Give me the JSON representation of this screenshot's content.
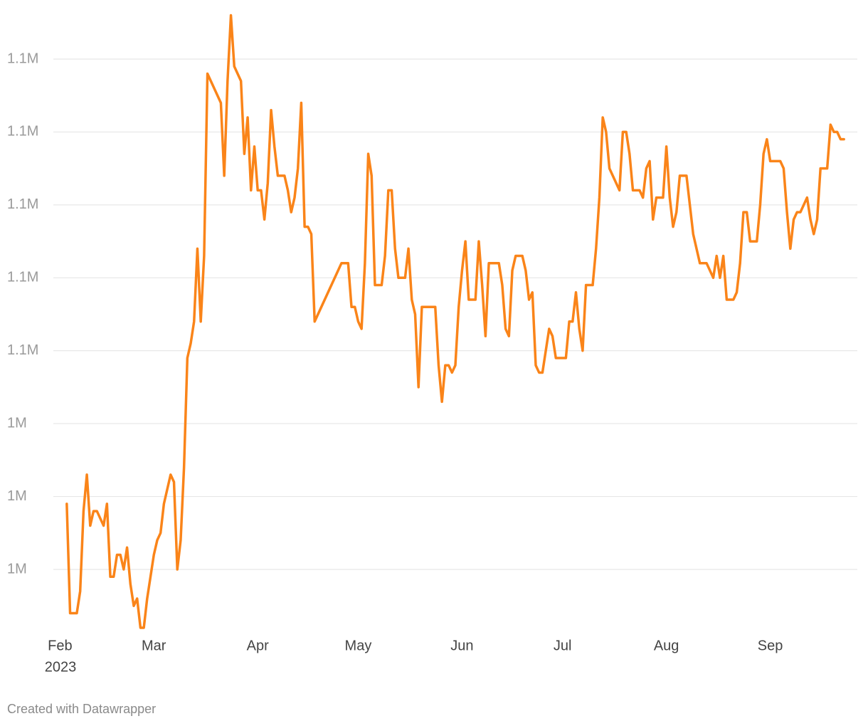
{
  "chart_data": {
    "type": "line",
    "x": [
      2,
      3,
      5,
      6,
      7,
      8,
      9,
      10,
      11,
      13,
      14,
      15,
      16,
      17,
      18,
      19,
      20,
      21,
      22,
      23,
      24,
      25,
      26,
      27,
      28,
      29,
      30,
      31,
      33,
      34,
      35,
      36,
      37,
      38,
      39,
      40,
      41,
      42,
      43,
      44,
      48,
      49,
      50,
      51,
      52,
      54,
      55,
      56,
      57,
      58,
      59,
      60,
      61,
      62,
      63,
      64,
      65,
      67,
      68,
      69,
      70,
      71,
      72,
      73,
      74,
      75,
      76,
      84,
      86,
      87,
      88,
      89,
      90,
      91,
      92,
      93,
      94,
      96,
      97,
      98,
      99,
      100,
      101,
      103,
      104,
      105,
      106,
      107,
      108,
      112,
      113,
      114,
      115,
      116,
      117,
      118,
      119,
      120,
      121,
      122,
      124,
      125,
      126,
      127,
      128,
      131,
      132,
      133,
      134,
      135,
      136,
      138,
      139,
      140,
      141,
      142,
      143,
      144,
      146,
      147,
      148,
      151,
      152,
      153,
      154,
      155,
      156,
      157,
      159,
      160,
      161,
      162,
      163,
      164,
      167,
      168,
      169,
      170,
      171,
      173,
      174,
      175,
      176,
      177,
      178,
      180,
      181,
      182,
      183,
      184,
      185,
      187,
      188,
      189,
      191,
      193,
      195,
      196,
      197,
      198,
      199,
      201,
      202,
      203,
      204,
      205,
      206,
      208,
      209,
      210,
      211,
      212,
      215,
      216,
      217,
      218,
      219,
      220,
      221,
      222,
      223,
      224,
      225,
      226,
      227,
      229,
      230,
      231,
      232,
      233,
      234
    ],
    "values": [
      1029000,
      1014000,
      1014000,
      1017000,
      1028000,
      1033000,
      1026000,
      1028000,
      1028000,
      1026000,
      1029000,
      1019000,
      1019000,
      1022000,
      1022000,
      1020000,
      1023000,
      1018000,
      1015000,
      1016000,
      1012000,
      1012000,
      1016000,
      1019000,
      1022000,
      1024000,
      1025000,
      1029000,
      1033000,
      1032000,
      1020000,
      1024000,
      1034000,
      1049000,
      1051000,
      1054000,
      1064000,
      1054000,
      1063000,
      1088000,
      1084000,
      1074000,
      1087000,
      1096000,
      1089000,
      1087000,
      1077000,
      1082000,
      1072000,
      1078000,
      1072000,
      1072000,
      1068000,
      1073000,
      1083000,
      1078000,
      1074000,
      1074000,
      1072000,
      1069000,
      1071000,
      1075000,
      1084000,
      1067000,
      1067000,
      1066000,
      1054000,
      1062000,
      1062000,
      1056000,
      1056000,
      1054000,
      1053000,
      1062000,
      1077000,
      1074000,
      1059000,
      1059000,
      1063000,
      1072000,
      1072000,
      1064000,
      1060000,
      1060000,
      1064000,
      1057000,
      1055000,
      1045000,
      1056000,
      1056000,
      1048000,
      1043000,
      1048000,
      1048000,
      1047000,
      1048000,
      1056000,
      1061000,
      1065000,
      1057000,
      1057000,
      1065000,
      1059000,
      1052000,
      1062000,
      1062000,
      1059000,
      1053000,
      1052000,
      1061000,
      1063000,
      1063000,
      1061000,
      1057000,
      1058000,
      1048000,
      1047000,
      1047000,
      1053000,
      1052000,
      1049000,
      1049000,
      1054000,
      1054000,
      1058000,
      1053000,
      1050000,
      1059000,
      1059000,
      1064000,
      1071000,
      1082000,
      1080000,
      1075000,
      1072000,
      1080000,
      1080000,
      1077000,
      1072000,
      1072000,
      1071000,
      1075000,
      1076000,
      1068000,
      1071000,
      1071000,
      1078000,
      1071000,
      1067000,
      1069000,
      1074000,
      1074000,
      1070000,
      1066000,
      1062000,
      1062000,
      1060000,
      1063000,
      1060000,
      1063000,
      1057000,
      1057000,
      1058000,
      1062000,
      1069000,
      1069000,
      1065000,
      1065000,
      1070000,
      1077000,
      1079000,
      1076000,
      1076000,
      1075000,
      1069000,
      1064000,
      1068000,
      1069000,
      1069000,
      1070000,
      1071000,
      1068000,
      1066000,
      1068000,
      1075000,
      1075000,
      1081000,
      1080000,
      1080000,
      1079000,
      1079000
    ],
    "color": "#fa8419",
    "xlim": [
      -2,
      238
    ],
    "xticks": [
      {
        "value": 0,
        "label": "Feb"
      },
      {
        "value": 28,
        "label": "Mar"
      },
      {
        "value": 59,
        "label": "Apr"
      },
      {
        "value": 89,
        "label": "May"
      },
      {
        "value": 120,
        "label": "Jun"
      },
      {
        "value": 150,
        "label": "Jul"
      },
      {
        "value": 181,
        "label": "Aug"
      },
      {
        "value": 212,
        "label": "Sep"
      }
    ],
    "x_year_label": "2023",
    "ylim": [
      1011000,
      1097000
    ],
    "yticks": [
      {
        "value": 1020000,
        "label": "1M"
      },
      {
        "value": 1030000,
        "label": "1M"
      },
      {
        "value": 1040000,
        "label": "1M"
      },
      {
        "value": 1050000,
        "label": "1.1M"
      },
      {
        "value": 1060000,
        "label": "1.1M"
      },
      {
        "value": 1070000,
        "label": "1.1M"
      },
      {
        "value": 1080000,
        "label": "1.1M"
      },
      {
        "value": 1090000,
        "label": "1.1M"
      }
    ],
    "grid": true,
    "footer": "Created with Datawrapper"
  }
}
